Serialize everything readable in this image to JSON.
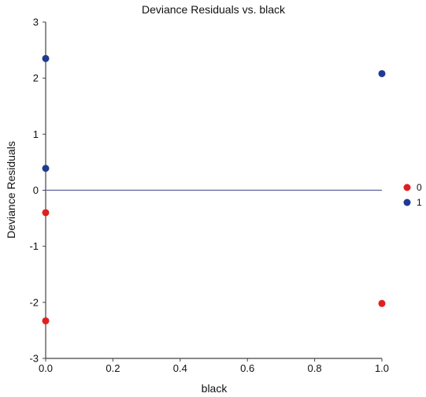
{
  "chart_data": {
    "type": "scatter",
    "title": "Deviance Residuals vs. black",
    "xlabel": "black",
    "ylabel": "Deviance Residuals",
    "xlim": [
      0,
      1
    ],
    "ylim": [
      -3,
      3
    ],
    "xticks": [
      "0.0",
      "0.2",
      "0.4",
      "0.6",
      "0.8",
      "1.0"
    ],
    "yticks": [
      "3",
      "2",
      "1",
      "0",
      "-1",
      "-2",
      "-3"
    ],
    "grid": false,
    "legend_position": "right",
    "reference_line": {
      "y": 0,
      "color": "#5a5f9a"
    },
    "series": [
      {
        "name": "0",
        "color": "#e02020",
        "points": [
          [
            0,
            -0.4
          ],
          [
            0,
            -2.33
          ],
          [
            1,
            -2.02
          ]
        ]
      },
      {
        "name": "1",
        "color": "#1f3a93",
        "points": [
          [
            0,
            2.35
          ],
          [
            0,
            0.39
          ],
          [
            1,
            2.08
          ]
        ]
      }
    ]
  }
}
